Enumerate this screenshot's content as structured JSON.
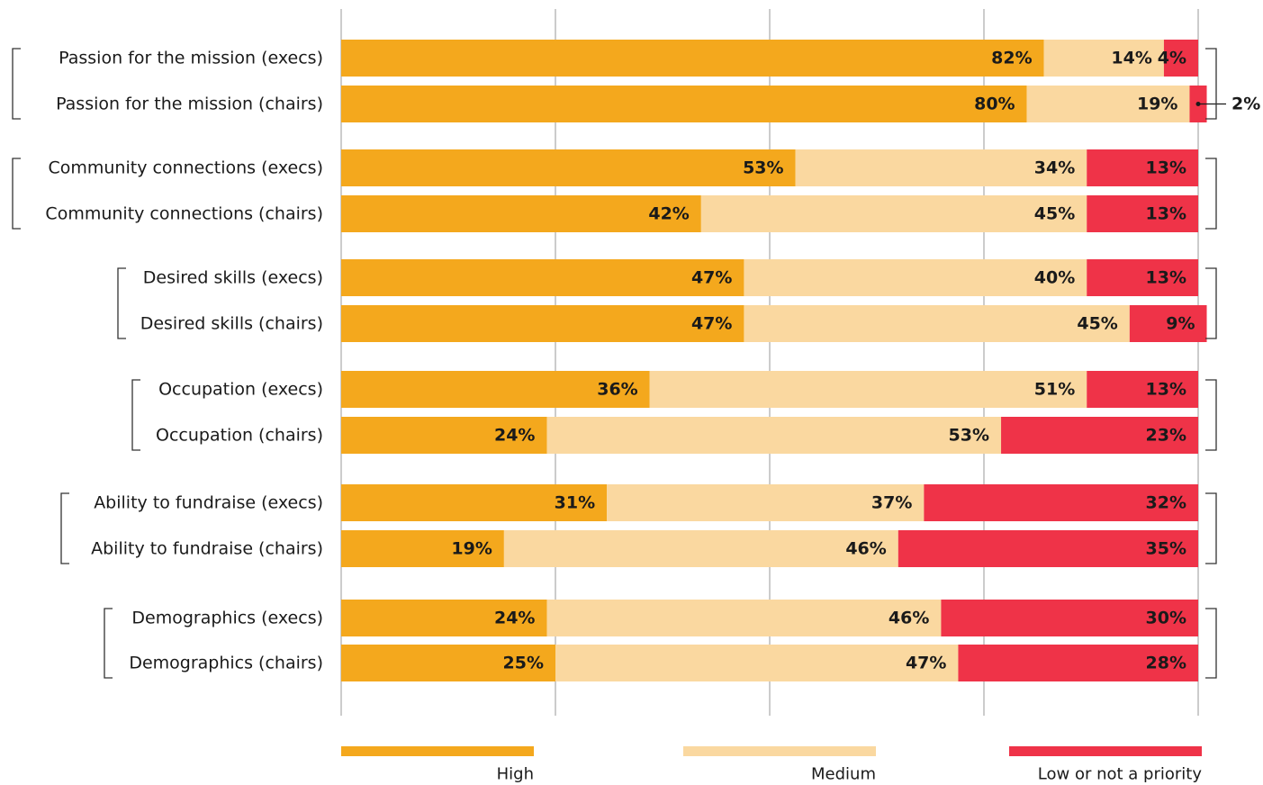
{
  "chart_data": {
    "type": "bar",
    "orientation": "horizontal",
    "stacked": true,
    "title": "",
    "xlabel": "",
    "ylabel": "",
    "xlim": [
      0,
      100
    ],
    "grid": true,
    "legend_position": "bottom",
    "value_suffix": "%",
    "categories": [
      "Passion for the mission (execs)",
      "Passion for the mission (chairs)",
      "Community connections (execs)",
      "Community connections (chairs)",
      "Desired skills (execs)",
      "Desired skills (chairs)",
      "Occupation (execs)",
      "Occupation (chairs)",
      "Ability to fundraise (execs)",
      "Ability to fundraise (chairs)",
      "Demographics (execs)",
      "Demographics (chairs)"
    ],
    "series": [
      {
        "name": "High",
        "color": "#f4a81d",
        "values": [
          82,
          80,
          53,
          42,
          47,
          47,
          36,
          24,
          31,
          19,
          24,
          25
        ]
      },
      {
        "name": "Medium",
        "color": "#fad8a0",
        "values": [
          14,
          19,
          34,
          45,
          40,
          45,
          51,
          53,
          37,
          46,
          46,
          47
        ]
      },
      {
        "name": "Low or not a priority",
        "color": "#ef3348",
        "values": [
          4,
          2,
          13,
          13,
          13,
          9,
          13,
          23,
          32,
          35,
          30,
          28
        ]
      }
    ]
  }
}
